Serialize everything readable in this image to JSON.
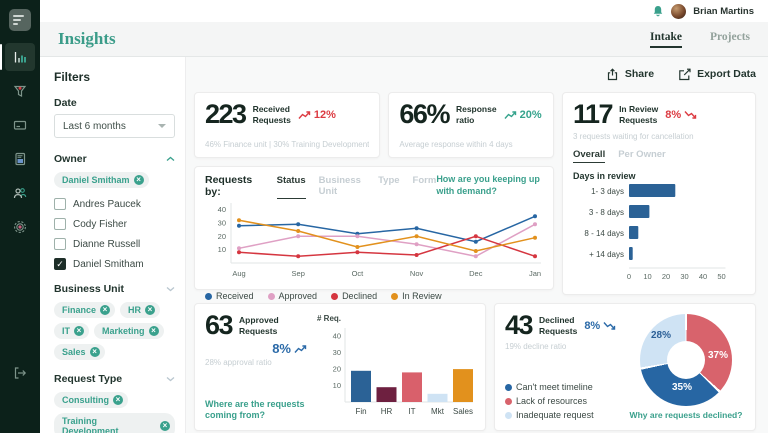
{
  "theme": {
    "accent_teal": "#3aa08c",
    "negative_red": "#dc3b42",
    "positive_teal": "#35a38c",
    "info_blue": "#2b6aa8",
    "sidebar_bg": "#0c211a"
  },
  "topbar": {
    "user_name": "Brian Martins",
    "bell_icon": "bell-icon",
    "avatar_icon": "user-avatar"
  },
  "titlebar": {
    "title": "Insights",
    "tabs": [
      {
        "label": "Intake",
        "active": true
      },
      {
        "label": "Projects",
        "active": false
      }
    ]
  },
  "sidebar_icons": [
    "bar-chart-icon",
    "funnel-icon",
    "card-icon",
    "document-icon",
    "users-icon",
    "gear-icon",
    "logout-icon"
  ],
  "toolbar": {
    "share_label": "Share",
    "export_label": "Export Data"
  },
  "filters": {
    "title": "Filters",
    "date": {
      "label": "Date",
      "value": "Last 6 months"
    },
    "owner": {
      "label": "Owner",
      "collapsed": false,
      "chips": [
        "Daniel Smitham"
      ],
      "options": [
        {
          "label": "Andres Paucek",
          "checked": false
        },
        {
          "label": "Cody Fisher",
          "checked": false
        },
        {
          "label": "Dianne Russell",
          "checked": false
        },
        {
          "label": "Daniel Smitham",
          "checked": true
        }
      ]
    },
    "business_unit": {
      "label": "Business Unit",
      "collapsed": true,
      "chips": [
        "Finance",
        "HR",
        "IT",
        "Marketing",
        "Sales"
      ]
    },
    "request_type": {
      "label": "Request Type",
      "collapsed": true,
      "chips": [
        "Consulting",
        "Training Development"
      ]
    }
  },
  "kpis": {
    "received": {
      "value": "223",
      "label_line1": "Received",
      "label_line2": "Requests",
      "delta": "12%",
      "trend": "up",
      "delta_color": "#dc3b42",
      "arrow_first": true,
      "subtext": "46% Finance unit  |  30% Training Development"
    },
    "response": {
      "value": "66%",
      "label_line1": "Response",
      "label_line2": "ratio",
      "delta": "20%",
      "trend": "up",
      "delta_color": "#35a38c",
      "arrow_first": true,
      "subtext": "Average response within 4 days"
    },
    "in_review": {
      "value": "117",
      "label_line1": "In Review",
      "label_line2": "Requests",
      "delta": "8%",
      "trend": "down",
      "delta_color": "#dc3b42",
      "arrow_first": false,
      "subtext": "3 requests waiting for cancellation"
    },
    "approved": {
      "value": "63",
      "label_line1": "Approved",
      "label_line2": "Requests",
      "delta": "8%",
      "trend": "up",
      "delta_color": "#2b6aa8",
      "arrow_first": false,
      "subtext": "28% approval ratio",
      "question": "Where are the requests coming from?"
    },
    "declined": {
      "value": "43",
      "label_line1": "Declined",
      "label_line2": "Requests",
      "delta": "8%",
      "trend": "down",
      "delta_color": "#2b6aa8",
      "arrow_first": false,
      "subtext": "19% decline ratio",
      "question": "Why are requests declined?"
    }
  },
  "chart_data": [
    {
      "id": "requests_by_status",
      "type": "line",
      "label": "Requests by:",
      "tabs": [
        "Status",
        "Business Unit",
        "Type",
        "Form"
      ],
      "active_tab": "Status",
      "annotation": "How are you keeping up with demand?",
      "x": [
        "Aug",
        "Sep",
        "Oct",
        "Nov",
        "Dec",
        "Jan"
      ],
      "ylim": [
        0,
        45
      ],
      "yticks": [
        10,
        20,
        30,
        40
      ],
      "grid": false,
      "legend_position": "bottom",
      "series": [
        {
          "name": "Received",
          "color": "#2766a3",
          "values": [
            28,
            29,
            22,
            26,
            16,
            35
          ]
        },
        {
          "name": "Approved",
          "color": "#dfa0c4",
          "values": [
            11,
            20,
            20,
            14,
            5,
            29
          ]
        },
        {
          "name": "Declined",
          "color": "#d53640",
          "values": [
            8,
            5,
            8,
            6,
            20,
            5
          ]
        },
        {
          "name": "In Review",
          "color": "#e2911d",
          "values": [
            32,
            24,
            12,
            20,
            9,
            19
          ]
        }
      ]
    },
    {
      "id": "days_in_review",
      "type": "bar",
      "orientation": "horizontal",
      "title": "Days in review",
      "tabs": [
        "Overall",
        "Per Owner"
      ],
      "active_tab": "Overall",
      "categories": [
        "1- 3 days",
        "3 - 8 days",
        "8 - 14 days",
        "+ 14 days"
      ],
      "values": [
        25,
        11,
        5,
        2
      ],
      "color": "#2b6296",
      "xlim": [
        0,
        50
      ],
      "xticks": [
        0,
        10,
        20,
        30,
        40,
        50
      ]
    },
    {
      "id": "approved_by_unit",
      "type": "bar",
      "orientation": "vertical",
      "ylabel": "# Req.",
      "categories": [
        "Fin",
        "HR",
        "IT",
        "Mkt",
        "Sales"
      ],
      "values": [
        19,
        9,
        18,
        5,
        20
      ],
      "colors": [
        "#2b6296",
        "#6e2040",
        "#d9606b",
        "#cfe3f4",
        "#e2911d"
      ],
      "ylim": [
        0,
        45
      ],
      "yticks": [
        10,
        20,
        30,
        40
      ]
    },
    {
      "id": "declined_reasons",
      "type": "pie",
      "slices": [
        {
          "label": "Lack of resources",
          "value": 37,
          "color": "#d8636c"
        },
        {
          "label": "Can't meet timeline",
          "value": 35,
          "color": "#2766a3"
        },
        {
          "label": "Inadequate request",
          "value": 28,
          "color": "#cfe3f4"
        }
      ],
      "legend_order": [
        "Can't meet timeline",
        "Lack of resources",
        "Inadequate request"
      ]
    }
  ]
}
